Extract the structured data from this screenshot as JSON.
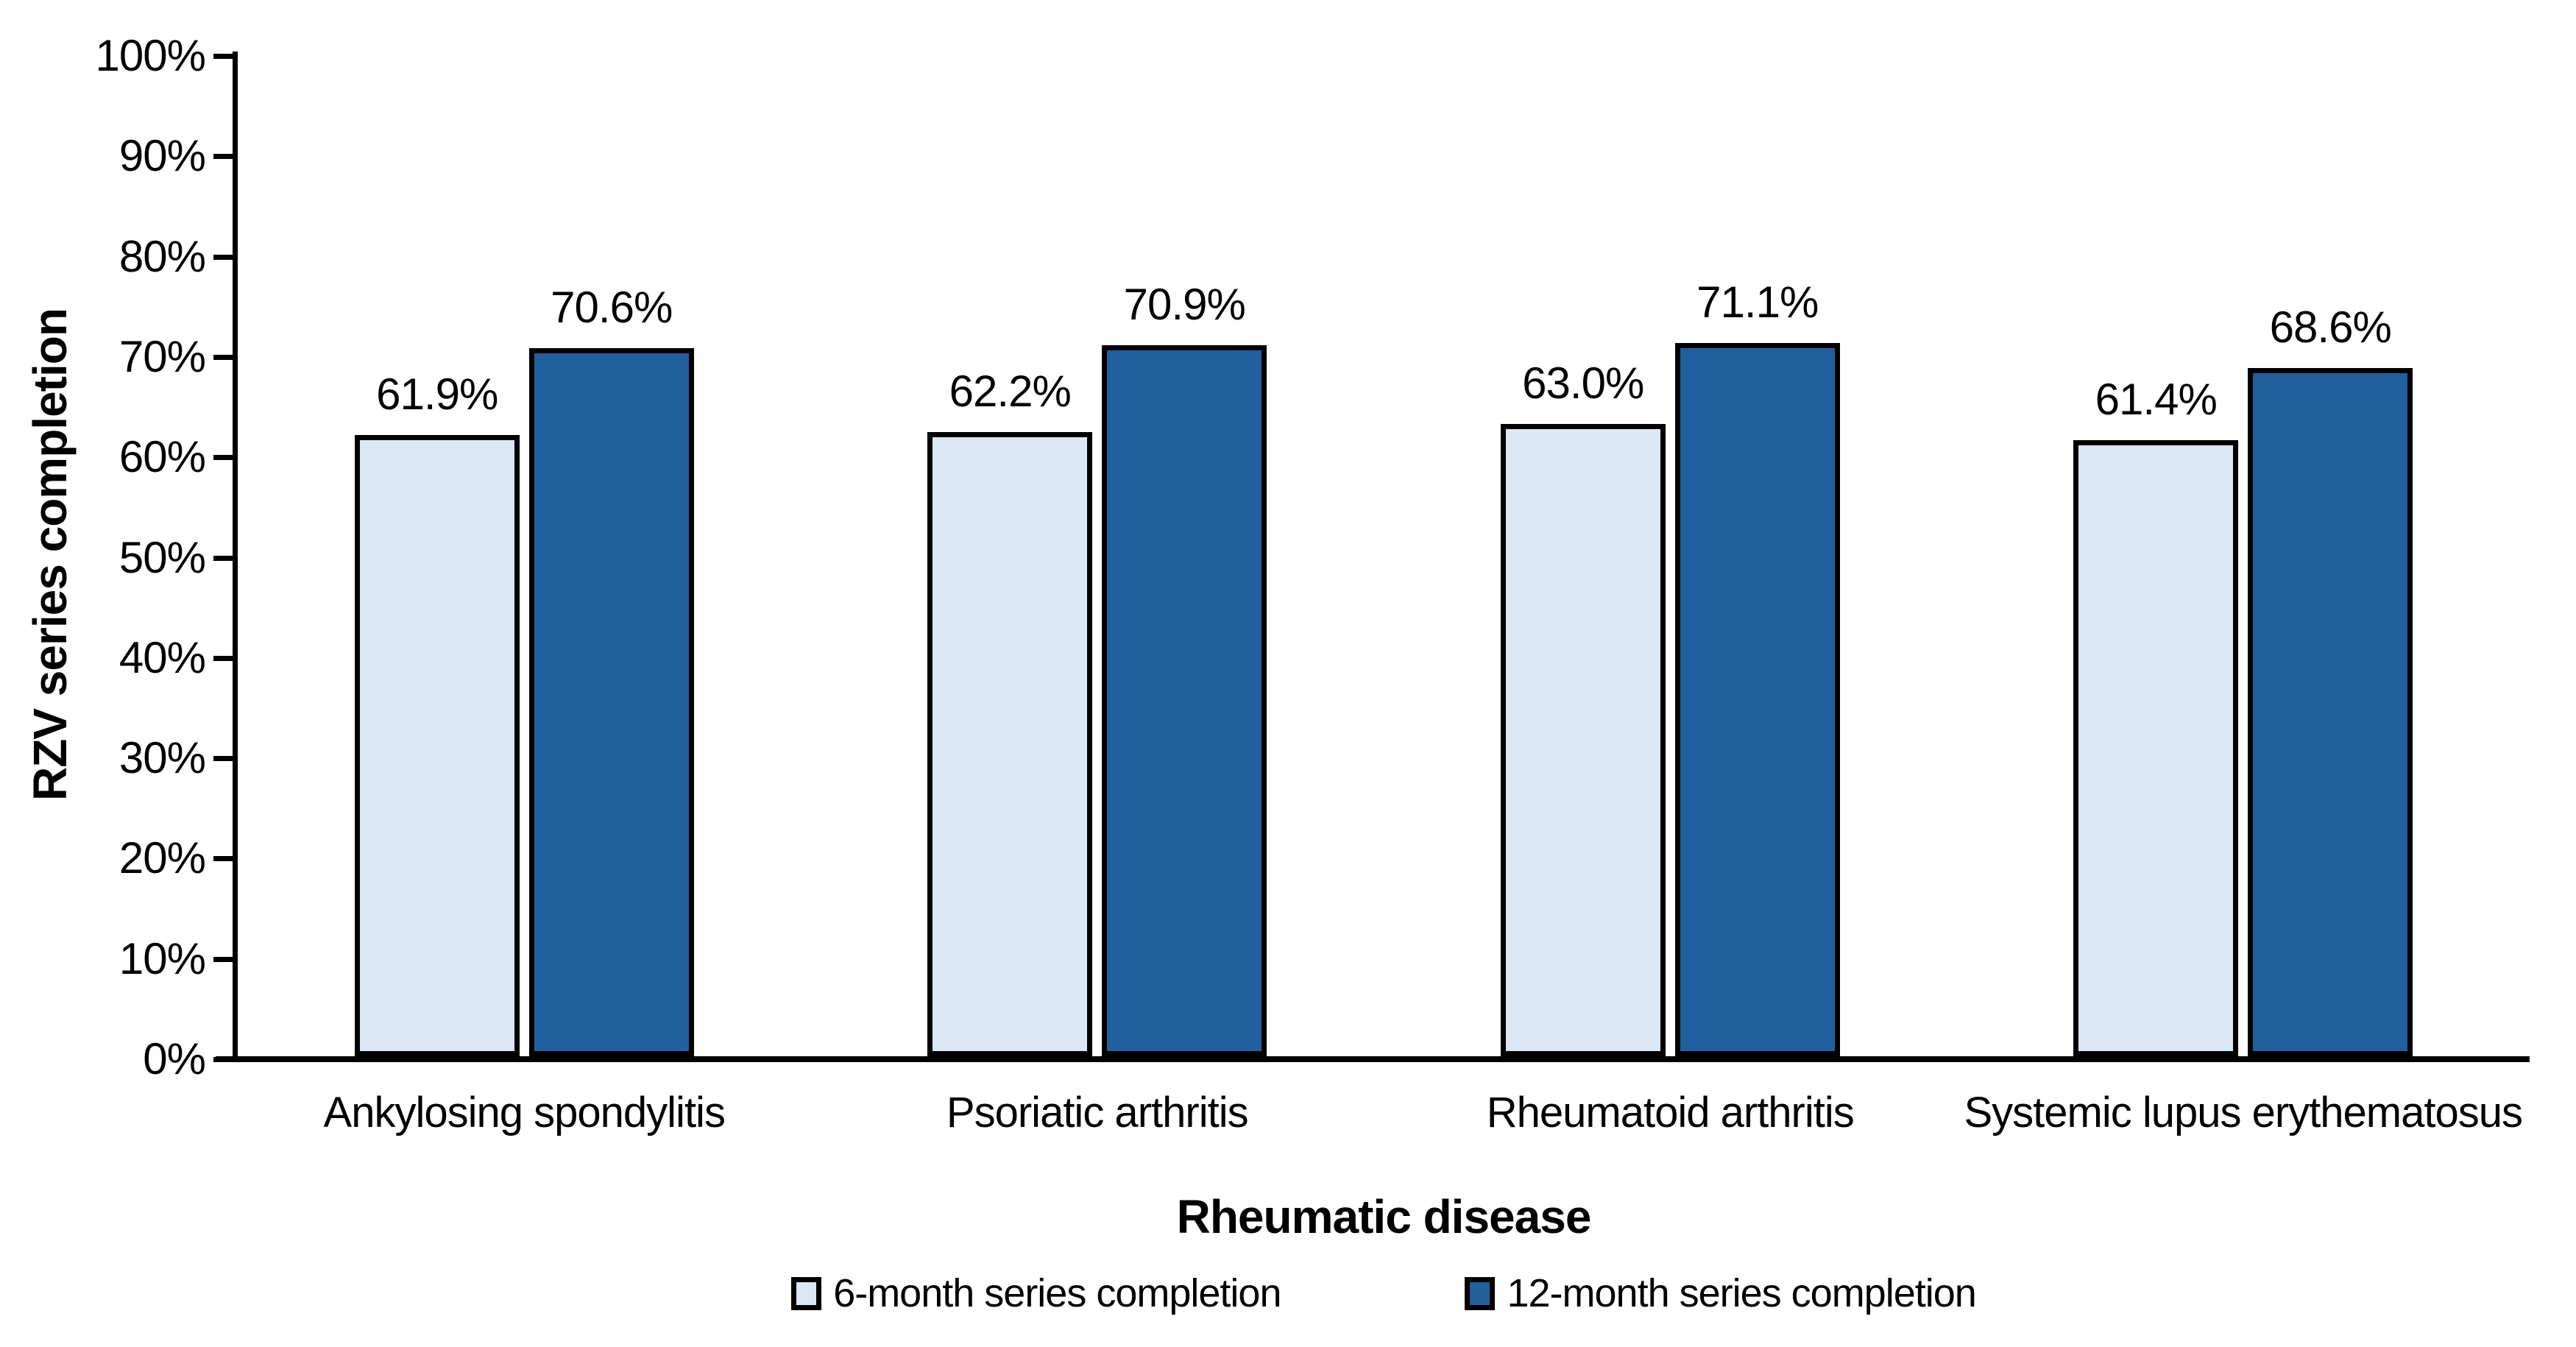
{
  "chart_data": {
    "type": "bar",
    "xlabel": "Rheumatic disease",
    "ylabel": "RZV series completion",
    "categories": [
      "Ankylosing spondylitis",
      "Psoriatic arthritis",
      "Rheumatoid arthritis",
      "Systemic lupus erythematosus"
    ],
    "series": [
      {
        "name": "6-month series completion",
        "color": "#dbe7f3",
        "values": [
          61.9,
          62.2,
          63.0,
          61.4
        ],
        "labels": [
          "61.9%",
          "62.2%",
          "63.0%",
          "61.4%"
        ]
      },
      {
        "name": "12-month series completion",
        "color": "#225f9e",
        "values": [
          70.6,
          70.9,
          71.1,
          68.6
        ],
        "labels": [
          "70.6%",
          "70.9%",
          "71.1%",
          "68.6%"
        ]
      }
    ],
    "y_ticks": [
      "0%",
      "10%",
      "20%",
      "30%",
      "40%",
      "50%",
      "60%",
      "70%",
      "80%",
      "90%",
      "100%"
    ],
    "ylim": [
      0,
      100
    ],
    "grid": false,
    "legend_position": "bottom",
    "bar_border_color": "#000000",
    "axis_color": "#000000"
  }
}
